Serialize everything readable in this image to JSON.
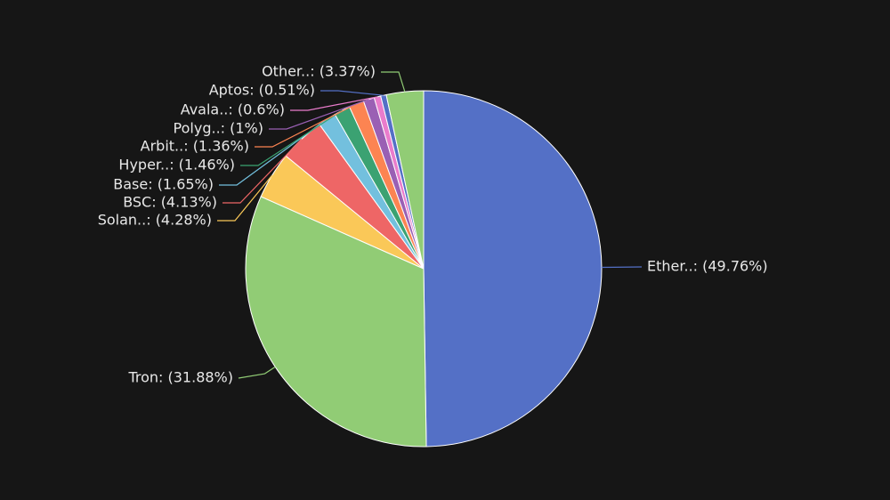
{
  "chart_data": {
    "type": "pie",
    "values": [
      49.76,
      31.88,
      4.28,
      4.13,
      1.65,
      1.46,
      1.36,
      1,
      0.6,
      0.51,
      3.37
    ],
    "value_labels": [
      "Ether..: (49.76%)",
      "Tron: (31.88%)",
      "Solan..: (4.28%)",
      "BSC: (4.13%)",
      "Base: (1.65%)",
      "Hyper..: (1.46%)",
      "Arbit..: (1.36%)",
      "Polyg..: (1%)",
      "Avala..: (0.6%)",
      "Aptos: (0.51%)",
      "Other..: (3.37%)"
    ],
    "colors": [
      "#5470c6",
      "#91cc75",
      "#fac858",
      "#ee6666",
      "#73c0de",
      "#3ba272",
      "#fc8452",
      "#9a60b4",
      "#ea7ccc",
      "#5470c6",
      "#91cc75"
    ]
  }
}
